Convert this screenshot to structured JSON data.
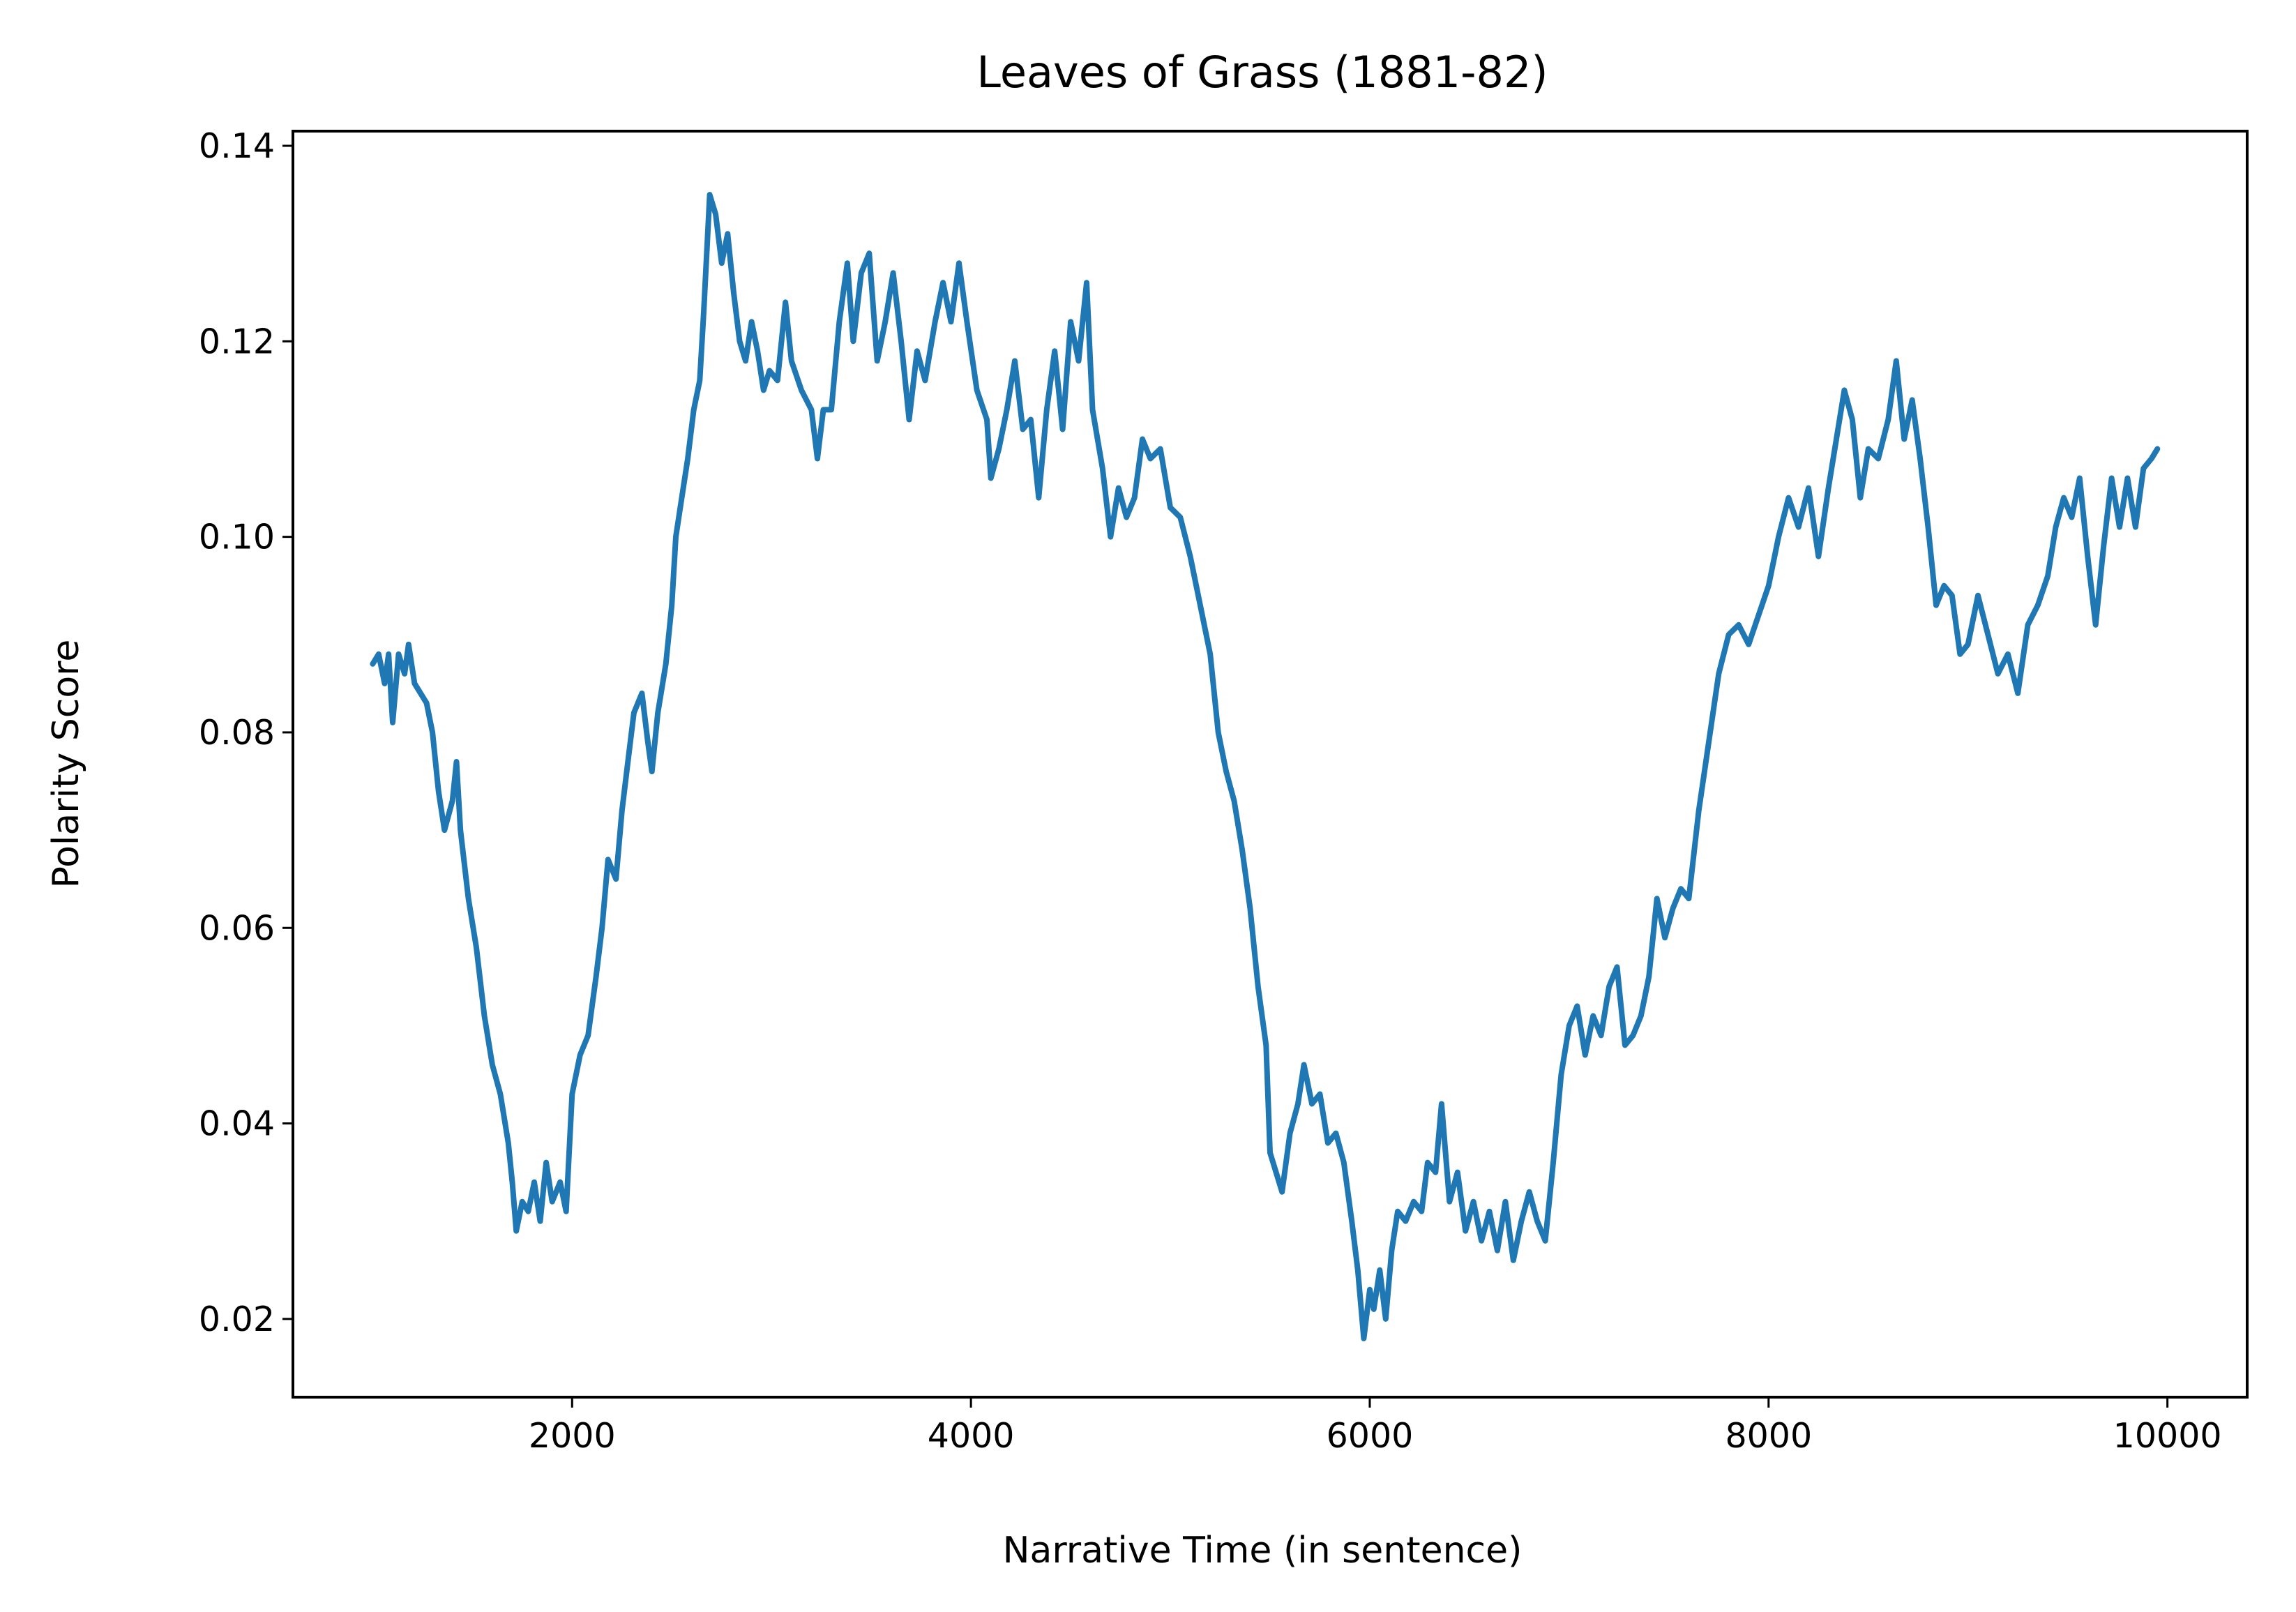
{
  "chart_data": {
    "type": "line",
    "title": "Leaves of Grass (1881-82)",
    "xlabel": "Narrative Time (in sentence)",
    "ylabel": "Polarity Score",
    "xlim": [
      600,
      10400
    ],
    "ylim": [
      0.012,
      0.1415
    ],
    "xticks": [
      2000,
      4000,
      6000,
      8000,
      10000
    ],
    "xtick_labels": [
      "2000",
      "4000",
      "6000",
      "8000",
      "10000"
    ],
    "yticks": [
      0.02,
      0.04,
      0.06,
      0.08,
      0.1,
      0.12,
      0.14
    ],
    "ytick_labels": [
      "0.02",
      "0.04",
      "0.06",
      "0.08",
      "0.10",
      "0.12",
      "0.14"
    ],
    "grid": false,
    "legend": "none",
    "series_color": "#1f77b4",
    "series": [
      {
        "values": [
          [
            1000,
            0.087
          ],
          [
            1030,
            0.088
          ],
          [
            1060,
            0.085
          ],
          [
            1080,
            0.088
          ],
          [
            1100,
            0.081
          ],
          [
            1130,
            0.088
          ],
          [
            1160,
            0.086
          ],
          [
            1180,
            0.089
          ],
          [
            1210,
            0.085
          ],
          [
            1240,
            0.084
          ],
          [
            1270,
            0.083
          ],
          [
            1300,
            0.08
          ],
          [
            1330,
            0.074
          ],
          [
            1360,
            0.07
          ],
          [
            1400,
            0.073
          ],
          [
            1420,
            0.077
          ],
          [
            1440,
            0.07
          ],
          [
            1480,
            0.063
          ],
          [
            1520,
            0.058
          ],
          [
            1560,
            0.051
          ],
          [
            1600,
            0.046
          ],
          [
            1640,
            0.043
          ],
          [
            1680,
            0.038
          ],
          [
            1700,
            0.034
          ],
          [
            1720,
            0.029
          ],
          [
            1750,
            0.032
          ],
          [
            1780,
            0.031
          ],
          [
            1810,
            0.034
          ],
          [
            1840,
            0.03
          ],
          [
            1870,
            0.036
          ],
          [
            1900,
            0.032
          ],
          [
            1940,
            0.034
          ],
          [
            1970,
            0.031
          ],
          [
            2000,
            0.043
          ],
          [
            2040,
            0.047
          ],
          [
            2080,
            0.049
          ],
          [
            2120,
            0.055
          ],
          [
            2150,
            0.06
          ],
          [
            2180,
            0.067
          ],
          [
            2220,
            0.065
          ],
          [
            2250,
            0.072
          ],
          [
            2280,
            0.077
          ],
          [
            2310,
            0.082
          ],
          [
            2350,
            0.084
          ],
          [
            2380,
            0.079
          ],
          [
            2400,
            0.076
          ],
          [
            2430,
            0.082
          ],
          [
            2470,
            0.087
          ],
          [
            2500,
            0.093
          ],
          [
            2520,
            0.1
          ],
          [
            2550,
            0.104
          ],
          [
            2580,
            0.108
          ],
          [
            2610,
            0.113
          ],
          [
            2640,
            0.116
          ],
          [
            2660,
            0.123
          ],
          [
            2690,
            0.135
          ],
          [
            2720,
            0.133
          ],
          [
            2750,
            0.128
          ],
          [
            2780,
            0.131
          ],
          [
            2810,
            0.125
          ],
          [
            2840,
            0.12
          ],
          [
            2870,
            0.118
          ],
          [
            2900,
            0.122
          ],
          [
            2930,
            0.119
          ],
          [
            2960,
            0.115
          ],
          [
            2990,
            0.117
          ],
          [
            3030,
            0.116
          ],
          [
            3070,
            0.124
          ],
          [
            3100,
            0.118
          ],
          [
            3150,
            0.115
          ],
          [
            3200,
            0.113
          ],
          [
            3230,
            0.108
          ],
          [
            3260,
            0.113
          ],
          [
            3300,
            0.113
          ],
          [
            3340,
            0.122
          ],
          [
            3380,
            0.128
          ],
          [
            3410,
            0.12
          ],
          [
            3450,
            0.127
          ],
          [
            3490,
            0.129
          ],
          [
            3530,
            0.118
          ],
          [
            3570,
            0.122
          ],
          [
            3610,
            0.127
          ],
          [
            3650,
            0.12
          ],
          [
            3690,
            0.112
          ],
          [
            3730,
            0.119
          ],
          [
            3770,
            0.116
          ],
          [
            3820,
            0.122
          ],
          [
            3860,
            0.126
          ],
          [
            3900,
            0.122
          ],
          [
            3940,
            0.128
          ],
          [
            3980,
            0.122
          ],
          [
            4030,
            0.115
          ],
          [
            4080,
            0.112
          ],
          [
            4100,
            0.106
          ],
          [
            4140,
            0.109
          ],
          [
            4180,
            0.113
          ],
          [
            4220,
            0.118
          ],
          [
            4260,
            0.111
          ],
          [
            4300,
            0.112
          ],
          [
            4340,
            0.104
          ],
          [
            4380,
            0.113
          ],
          [
            4420,
            0.119
          ],
          [
            4460,
            0.111
          ],
          [
            4500,
            0.122
          ],
          [
            4540,
            0.118
          ],
          [
            4580,
            0.126
          ],
          [
            4610,
            0.113
          ],
          [
            4660,
            0.107
          ],
          [
            4700,
            0.1
          ],
          [
            4740,
            0.105
          ],
          [
            4780,
            0.102
          ],
          [
            4820,
            0.104
          ],
          [
            4860,
            0.11
          ],
          [
            4900,
            0.108
          ],
          [
            4950,
            0.109
          ],
          [
            5000,
            0.103
          ],
          [
            5050,
            0.102
          ],
          [
            5100,
            0.098
          ],
          [
            5150,
            0.093
          ],
          [
            5200,
            0.088
          ],
          [
            5240,
            0.08
          ],
          [
            5280,
            0.076
          ],
          [
            5320,
            0.073
          ],
          [
            5360,
            0.068
          ],
          [
            5400,
            0.062
          ],
          [
            5440,
            0.054
          ],
          [
            5480,
            0.048
          ],
          [
            5500,
            0.037
          ],
          [
            5530,
            0.035
          ],
          [
            5560,
            0.033
          ],
          [
            5600,
            0.039
          ],
          [
            5640,
            0.042
          ],
          [
            5670,
            0.046
          ],
          [
            5710,
            0.042
          ],
          [
            5750,
            0.043
          ],
          [
            5790,
            0.038
          ],
          [
            5830,
            0.039
          ],
          [
            5870,
            0.036
          ],
          [
            5910,
            0.03
          ],
          [
            5940,
            0.025
          ],
          [
            5970,
            0.018
          ],
          [
            6000,
            0.023
          ],
          [
            6020,
            0.021
          ],
          [
            6050,
            0.025
          ],
          [
            6080,
            0.02
          ],
          [
            6110,
            0.027
          ],
          [
            6140,
            0.031
          ],
          [
            6180,
            0.03
          ],
          [
            6220,
            0.032
          ],
          [
            6260,
            0.031
          ],
          [
            6290,
            0.036
          ],
          [
            6330,
            0.035
          ],
          [
            6360,
            0.042
          ],
          [
            6400,
            0.032
          ],
          [
            6440,
            0.035
          ],
          [
            6480,
            0.029
          ],
          [
            6520,
            0.032
          ],
          [
            6560,
            0.028
          ],
          [
            6600,
            0.031
          ],
          [
            6640,
            0.027
          ],
          [
            6680,
            0.032
          ],
          [
            6720,
            0.026
          ],
          [
            6760,
            0.03
          ],
          [
            6800,
            0.033
          ],
          [
            6840,
            0.03
          ],
          [
            6880,
            0.028
          ],
          [
            6920,
            0.036
          ],
          [
            6960,
            0.045
          ],
          [
            7000,
            0.05
          ],
          [
            7040,
            0.052
          ],
          [
            7080,
            0.047
          ],
          [
            7120,
            0.051
          ],
          [
            7160,
            0.049
          ],
          [
            7200,
            0.054
          ],
          [
            7240,
            0.056
          ],
          [
            7280,
            0.048
          ],
          [
            7320,
            0.049
          ],
          [
            7360,
            0.051
          ],
          [
            7400,
            0.055
          ],
          [
            7440,
            0.063
          ],
          [
            7480,
            0.059
          ],
          [
            7520,
            0.062
          ],
          [
            7560,
            0.064
          ],
          [
            7600,
            0.063
          ],
          [
            7650,
            0.072
          ],
          [
            7700,
            0.079
          ],
          [
            7750,
            0.086
          ],
          [
            7800,
            0.09
          ],
          [
            7850,
            0.091
          ],
          [
            7900,
            0.089
          ],
          [
            7950,
            0.092
          ],
          [
            8000,
            0.095
          ],
          [
            8050,
            0.1
          ],
          [
            8100,
            0.104
          ],
          [
            8150,
            0.101
          ],
          [
            8200,
            0.105
          ],
          [
            8250,
            0.098
          ],
          [
            8300,
            0.105
          ],
          [
            8340,
            0.11
          ],
          [
            8380,
            0.115
          ],
          [
            8420,
            0.112
          ],
          [
            8460,
            0.104
          ],
          [
            8500,
            0.109
          ],
          [
            8550,
            0.108
          ],
          [
            8600,
            0.112
          ],
          [
            8640,
            0.118
          ],
          [
            8680,
            0.11
          ],
          [
            8720,
            0.114
          ],
          [
            8760,
            0.108
          ],
          [
            8800,
            0.101
          ],
          [
            8840,
            0.093
          ],
          [
            8880,
            0.095
          ],
          [
            8920,
            0.094
          ],
          [
            8960,
            0.088
          ],
          [
            9000,
            0.089
          ],
          [
            9050,
            0.094
          ],
          [
            9100,
            0.09
          ],
          [
            9150,
            0.086
          ],
          [
            9200,
            0.088
          ],
          [
            9250,
            0.084
          ],
          [
            9300,
            0.091
          ],
          [
            9350,
            0.093
          ],
          [
            9400,
            0.096
          ],
          [
            9440,
            0.101
          ],
          [
            9480,
            0.104
          ],
          [
            9520,
            0.102
          ],
          [
            9560,
            0.106
          ],
          [
            9600,
            0.098
          ],
          [
            9640,
            0.091
          ],
          [
            9680,
            0.099
          ],
          [
            9720,
            0.106
          ],
          [
            9760,
            0.101
          ],
          [
            9800,
            0.106
          ],
          [
            9840,
            0.101
          ],
          [
            9880,
            0.107
          ],
          [
            9920,
            0.108
          ],
          [
            9950,
            0.109
          ]
        ]
      }
    ]
  }
}
